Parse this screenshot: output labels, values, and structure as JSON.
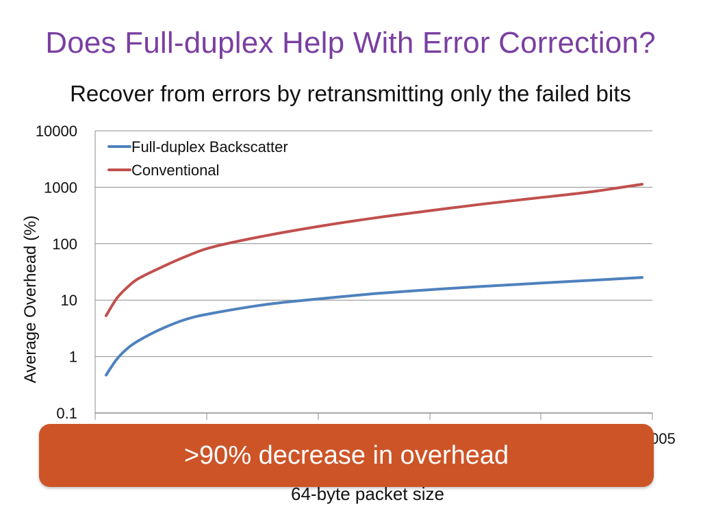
{
  "slide": {
    "title": "Does Full-duplex Help With Error Correction?",
    "subtitle": "Recover from errors by retransmitting only the failed bits",
    "callout": ">90% decrease in overhead"
  },
  "chart_data": {
    "type": "line",
    "title": "",
    "xlabel": "64-byte packet size",
    "ylabel": "Average Overhead (%)",
    "y_scale": "log",
    "ylim": [
      0.1,
      10000
    ],
    "y_ticks": [
      "10000",
      "1000",
      "100",
      "10",
      "1",
      "0.1"
    ],
    "x_visible_tick_label_fragment": "005",
    "grid": true,
    "legend_position": "top-left",
    "series": [
      {
        "name": "Full-duplex Backscatter",
        "color": "#4f81bd",
        "x": [
          0,
          0.02,
          0.04,
          0.06,
          0.1,
          0.15,
          0.2,
          0.3,
          0.4,
          0.5,
          0.6,
          0.7,
          0.8,
          0.9,
          1.0
        ],
        "values": [
          0.47,
          0.9,
          1.4,
          1.9,
          3.0,
          4.6,
          5.9,
          8.4,
          10.6,
          13.0,
          15.2,
          17.5,
          19.8,
          22.3,
          25.2
        ]
      },
      {
        "name": "Conventional",
        "color": "#c0504d",
        "x": [
          0,
          0.02,
          0.04,
          0.06,
          0.1,
          0.15,
          0.2,
          0.3,
          0.4,
          0.5,
          0.6,
          0.7,
          0.8,
          0.9,
          1.0
        ],
        "values": [
          5.3,
          10.8,
          17,
          24,
          37,
          60,
          88,
          140,
          205,
          285,
          380,
          500,
          640,
          820,
          1130
        ]
      }
    ]
  }
}
